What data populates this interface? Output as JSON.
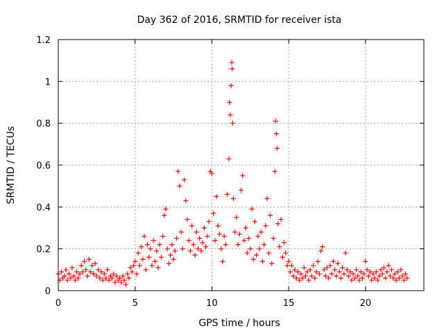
{
  "chart_data": {
    "type": "scatter",
    "title": "Day 362 of 2016, SRMTID for receiver ista",
    "xlabel": "GPS time / hours",
    "ylabel": "SRMTID / TECUs",
    "xlim": [
      0,
      23.8
    ],
    "ylim": [
      0,
      1.2
    ],
    "xticks": [
      0,
      5,
      10,
      15,
      20
    ],
    "xtick_labels": [
      "0",
      "5",
      "10",
      "15",
      "20"
    ],
    "yticks": [
      0,
      0.2,
      0.4,
      0.6,
      0.8,
      1.0,
      1.2
    ],
    "ytick_labels": [
      "0",
      "0.2",
      "0.4",
      "0.6",
      "0.8",
      "1",
      "1.2"
    ],
    "grid": true,
    "marker": "+",
    "series_color": "#ff0000",
    "series": [
      {
        "name": "SRMTID",
        "points": [
          [
            0.0,
            0.08
          ],
          [
            0.1,
            0.05
          ],
          [
            0.2,
            0.09
          ],
          [
            0.3,
            0.06
          ],
          [
            0.4,
            0.07
          ],
          [
            0.5,
            0.1
          ],
          [
            0.6,
            0.05
          ],
          [
            0.7,
            0.08
          ],
          [
            0.8,
            0.06
          ],
          [
            0.9,
            0.11
          ],
          [
            1.0,
            0.07
          ],
          [
            1.1,
            0.05
          ],
          [
            1.2,
            0.09
          ],
          [
            1.3,
            0.06
          ],
          [
            1.4,
            0.08
          ],
          [
            1.5,
            0.12
          ],
          [
            1.6,
            0.09
          ],
          [
            1.7,
            0.14
          ],
          [
            1.8,
            0.1
          ],
          [
            1.9,
            0.07
          ],
          [
            2.0,
            0.15
          ],
          [
            2.1,
            0.09
          ],
          [
            2.2,
            0.12
          ],
          [
            2.3,
            0.08
          ],
          [
            2.4,
            0.13
          ],
          [
            2.5,
            0.07
          ],
          [
            2.6,
            0.1
          ],
          [
            2.7,
            0.06
          ],
          [
            2.8,
            0.09
          ],
          [
            2.9,
            0.05
          ],
          [
            3.0,
            0.08
          ],
          [
            3.1,
            0.06
          ],
          [
            3.2,
            0.1
          ],
          [
            3.3,
            0.05
          ],
          [
            3.4,
            0.07
          ],
          [
            3.5,
            0.06
          ],
          [
            3.6,
            0.08
          ],
          [
            3.7,
            0.04
          ],
          [
            3.8,
            0.07
          ],
          [
            3.9,
            0.05
          ],
          [
            4.0,
            0.06
          ],
          [
            4.1,
            0.04
          ],
          [
            4.2,
            0.07
          ],
          [
            4.3,
            0.05
          ],
          [
            4.4,
            0.03
          ],
          [
            4.5,
            0.08
          ],
          [
            4.6,
            0.06
          ],
          [
            4.7,
            0.11
          ],
          [
            4.8,
            0.09
          ],
          [
            4.9,
            0.12
          ],
          [
            5.0,
            0.14
          ],
          [
            5.1,
            0.08
          ],
          [
            5.2,
            0.18
          ],
          [
            5.3,
            0.12
          ],
          [
            5.4,
            0.21
          ],
          [
            5.5,
            0.15
          ],
          [
            5.6,
            0.26
          ],
          [
            5.7,
            0.1
          ],
          [
            5.8,
            0.22
          ],
          [
            5.9,
            0.16
          ],
          [
            6.0,
            0.2
          ],
          [
            6.1,
            0.12
          ],
          [
            6.2,
            0.24
          ],
          [
            6.3,
            0.14
          ],
          [
            6.4,
            0.19
          ],
          [
            6.5,
            0.11
          ],
          [
            6.6,
            0.22
          ],
          [
            6.7,
            0.16
          ],
          [
            6.8,
            0.26
          ],
          [
            6.9,
            0.36
          ],
          [
            7.0,
            0.39
          ],
          [
            7.1,
            0.2
          ],
          [
            7.2,
            0.13
          ],
          [
            7.3,
            0.17
          ],
          [
            7.4,
            0.22
          ],
          [
            7.5,
            0.15
          ],
          [
            7.6,
            0.19
          ],
          [
            7.7,
            0.25
          ],
          [
            7.8,
            0.57
          ],
          [
            7.9,
            0.5
          ],
          [
            8.0,
            0.28
          ],
          [
            8.1,
            0.2
          ],
          [
            8.2,
            0.53
          ],
          [
            8.3,
            0.43
          ],
          [
            8.4,
            0.34
          ],
          [
            8.5,
            0.24
          ],
          [
            8.6,
            0.19
          ],
          [
            8.7,
            0.31
          ],
          [
            8.8,
            0.22
          ],
          [
            8.9,
            0.17
          ],
          [
            9.0,
            0.28
          ],
          [
            9.1,
            0.2
          ],
          [
            9.2,
            0.25
          ],
          [
            9.3,
            0.19
          ],
          [
            9.4,
            0.23
          ],
          [
            9.5,
            0.3
          ],
          [
            9.6,
            0.21
          ],
          [
            9.7,
            0.26
          ],
          [
            9.8,
            0.33
          ],
          [
            9.9,
            0.57
          ],
          [
            10.0,
            0.56
          ],
          [
            10.1,
            0.37
          ],
          [
            10.2,
            0.24
          ],
          [
            10.3,
            0.45
          ],
          [
            10.4,
            0.31
          ],
          [
            10.5,
            0.27
          ],
          [
            10.6,
            0.2
          ],
          [
            10.7,
            0.14
          ],
          [
            10.8,
            0.26
          ],
          [
            10.9,
            0.22
          ],
          [
            11.0,
            0.46
          ],
          [
            11.1,
            0.63
          ],
          [
            11.15,
            0.9
          ],
          [
            11.2,
            0.84
          ],
          [
            11.25,
            0.98
          ],
          [
            11.3,
            1.09
          ],
          [
            11.32,
            1.06
          ],
          [
            11.35,
            0.8
          ],
          [
            11.4,
            0.44
          ],
          [
            11.5,
            0.28
          ],
          [
            11.6,
            0.35
          ],
          [
            11.7,
            0.22
          ],
          [
            11.8,
            0.27
          ],
          [
            11.9,
            0.48
          ],
          [
            12.0,
            0.55
          ],
          [
            12.1,
            0.24
          ],
          [
            12.2,
            0.3
          ],
          [
            12.3,
            0.18
          ],
          [
            12.4,
            0.25
          ],
          [
            12.5,
            0.2
          ],
          [
            12.6,
            0.39
          ],
          [
            12.7,
            0.15
          ],
          [
            12.8,
            0.33
          ],
          [
            12.9,
            0.17
          ],
          [
            13.0,
            0.26
          ],
          [
            13.1,
            0.2
          ],
          [
            13.2,
            0.28
          ],
          [
            13.3,
            0.14
          ],
          [
            13.4,
            0.22
          ],
          [
            13.5,
            0.31
          ],
          [
            13.6,
            0.44
          ],
          [
            13.7,
            0.18
          ],
          [
            13.8,
            0.36
          ],
          [
            13.9,
            0.13
          ],
          [
            14.0,
            0.25
          ],
          [
            14.1,
            0.57
          ],
          [
            14.15,
            0.81
          ],
          [
            14.2,
            0.75
          ],
          [
            14.25,
            0.68
          ],
          [
            14.3,
            0.32
          ],
          [
            14.4,
            0.21
          ],
          [
            14.5,
            0.34
          ],
          [
            14.6,
            0.16
          ],
          [
            14.7,
            0.23
          ],
          [
            14.8,
            0.18
          ],
          [
            14.9,
            0.12
          ],
          [
            15.0,
            0.14
          ],
          [
            15.1,
            0.09
          ],
          [
            15.2,
            0.12
          ],
          [
            15.3,
            0.07
          ],
          [
            15.4,
            0.1
          ],
          [
            15.5,
            0.06
          ],
          [
            15.6,
            0.09
          ],
          [
            15.7,
            0.05
          ],
          [
            15.8,
            0.08
          ],
          [
            15.9,
            0.06
          ],
          [
            16.0,
            0.11
          ],
          [
            16.1,
            0.07
          ],
          [
            16.2,
            0.09
          ],
          [
            16.3,
            0.05
          ],
          [
            16.4,
            0.1
          ],
          [
            16.5,
            0.07
          ],
          [
            16.6,
            0.12
          ],
          [
            16.7,
            0.06
          ],
          [
            16.8,
            0.09
          ],
          [
            16.9,
            0.14
          ],
          [
            17.0,
            0.08
          ],
          [
            17.1,
            0.19
          ],
          [
            17.2,
            0.21
          ],
          [
            17.3,
            0.1
          ],
          [
            17.4,
            0.07
          ],
          [
            17.5,
            0.11
          ],
          [
            17.6,
            0.06
          ],
          [
            17.7,
            0.12
          ],
          [
            17.8,
            0.08
          ],
          [
            17.9,
            0.14
          ],
          [
            18.0,
            0.1
          ],
          [
            18.1,
            0.07
          ],
          [
            18.2,
            0.13
          ],
          [
            18.3,
            0.09
          ],
          [
            18.4,
            0.06
          ],
          [
            18.5,
            0.11
          ],
          [
            18.6,
            0.08
          ],
          [
            18.7,
            0.18
          ],
          [
            18.8,
            0.1
          ],
          [
            18.9,
            0.07
          ],
          [
            19.0,
            0.09
          ],
          [
            19.1,
            0.05
          ],
          [
            19.2,
            0.08
          ],
          [
            19.3,
            0.06
          ],
          [
            19.4,
            0.1
          ],
          [
            19.5,
            0.07
          ],
          [
            19.6,
            0.05
          ],
          [
            19.7,
            0.09
          ],
          [
            19.8,
            0.06
          ],
          [
            19.9,
            0.08
          ],
          [
            20.0,
            0.14
          ],
          [
            20.1,
            0.1
          ],
          [
            20.2,
            0.07
          ],
          [
            20.3,
            0.09
          ],
          [
            20.4,
            0.05
          ],
          [
            20.5,
            0.08
          ],
          [
            20.6,
            0.06
          ],
          [
            20.7,
            0.09
          ],
          [
            20.8,
            0.05
          ],
          [
            20.9,
            0.07
          ],
          [
            21.0,
            0.1
          ],
          [
            21.1,
            0.08
          ],
          [
            21.2,
            0.11
          ],
          [
            21.3,
            0.06
          ],
          [
            21.4,
            0.09
          ],
          [
            21.5,
            0.12
          ],
          [
            21.6,
            0.07
          ],
          [
            21.7,
            0.1
          ],
          [
            21.8,
            0.06
          ],
          [
            21.9,
            0.08
          ],
          [
            22.0,
            0.05
          ],
          [
            22.1,
            0.09
          ],
          [
            22.2,
            0.06
          ],
          [
            22.3,
            0.1
          ],
          [
            22.4,
            0.07
          ],
          [
            22.5,
            0.05
          ],
          [
            22.6,
            0.08
          ],
          [
            22.7,
            0.06
          ]
        ]
      }
    ]
  }
}
